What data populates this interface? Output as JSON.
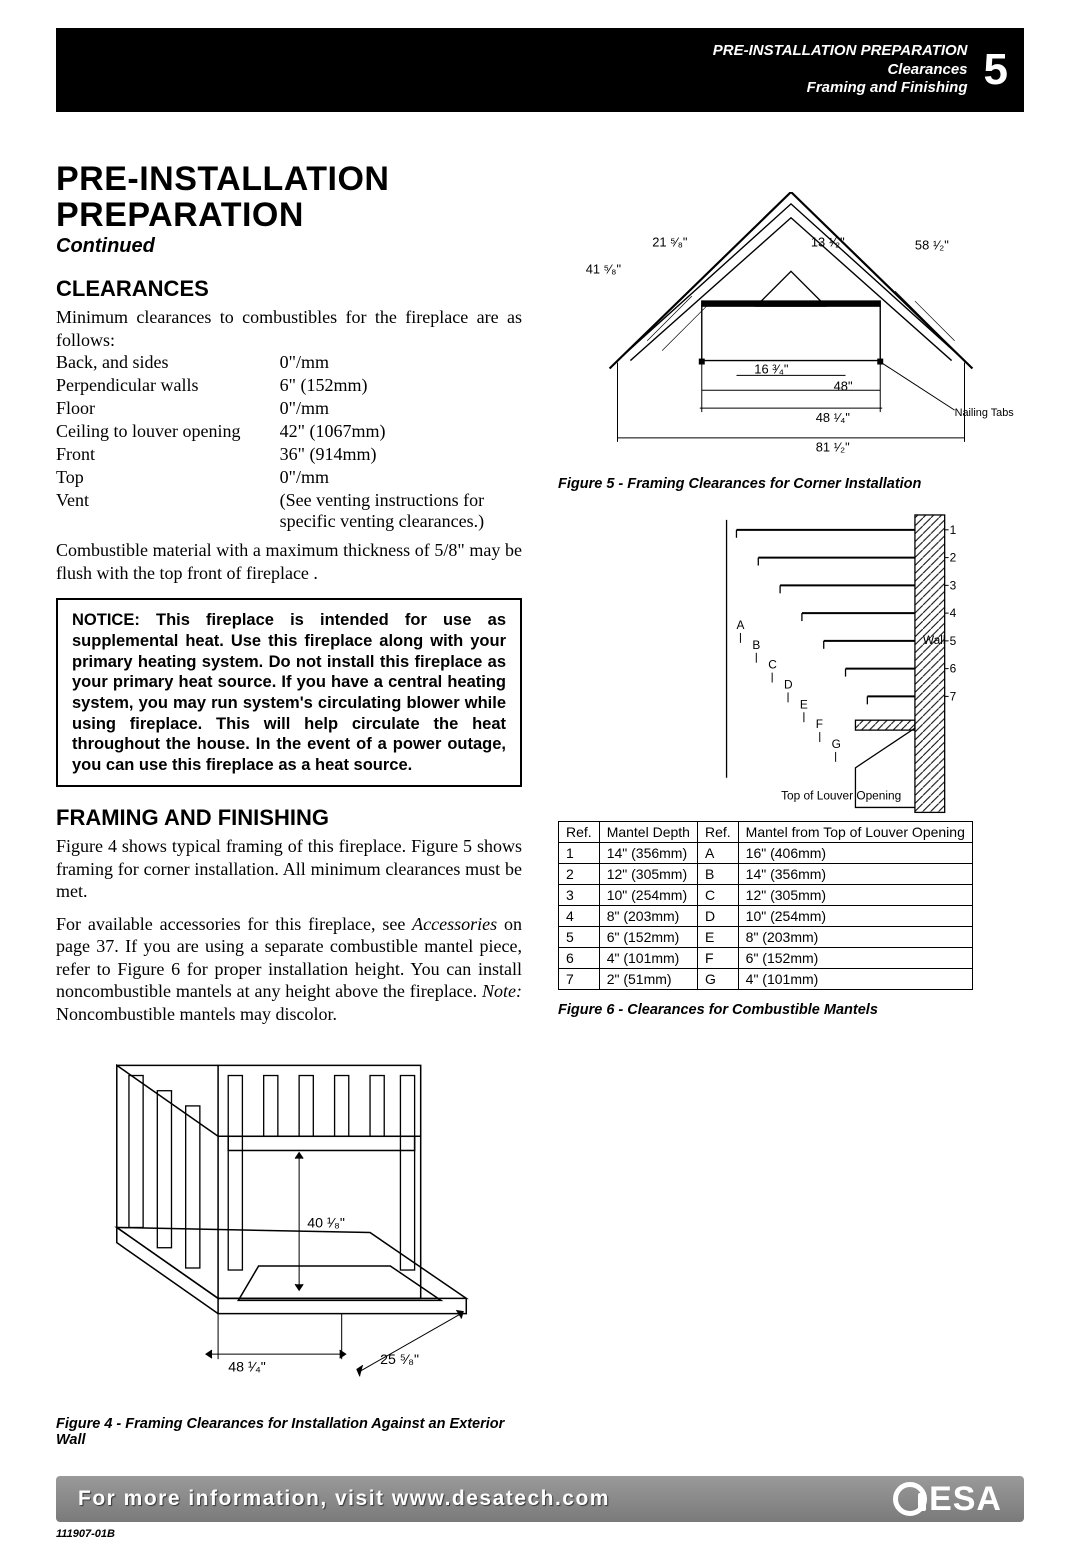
{
  "header": {
    "line1": "PRE-INSTALLATION PREPARATION",
    "line2": "Clearances",
    "line3": "Framing and Finishing",
    "page_num": "5"
  },
  "section_title_1": "PRE-INSTALLATION",
  "section_title_2": "PREPARATION",
  "continued": "Continued",
  "clearances_heading": "CLEARANCES",
  "clearances_intro": "Minimum clearances to combustibles for the fireplace are as follows:",
  "clearances": [
    {
      "label": "Back, and sides",
      "value": "0\"/mm"
    },
    {
      "label": "Perpendicular walls",
      "value": "6\" (152mm)"
    },
    {
      "label": "Floor",
      "value": "0\"/mm"
    },
    {
      "label": "Ceiling to louver opening",
      "value": "42\" (1067mm)"
    },
    {
      "label": "Front",
      "value": "36\" (914mm)"
    },
    {
      "label": "Top",
      "value": "0\"/mm"
    },
    {
      "label": "Vent",
      "value": "(See venting instructions for specific venting clearances.)"
    }
  ],
  "combustible_note": "Combustible material with a maximum thickness of 5/8\" may be flush with the top front of fireplace .",
  "notice": "NOTICE: This fireplace is intended for use as supplemental heat. Use this fireplace along with your primary heating system. Do not install this fireplace as your primary heat source. If you have a central heating system, you may run system's circulating blower while using fireplace. This will help circulate the heat throughout the house. In the event of a power outage, you can use this fireplace as a heat source.",
  "framing_heading": "FRAMING AND FINISHING",
  "framing_p1": "Figure 4 shows typical framing of this fireplace. Figure 5 shows framing for corner installation. All minimum clearances must be met.",
  "framing_p2_a": "For available accessories for this fireplace, see ",
  "framing_p2_em": "Accessories",
  "framing_p2_b": " on page 37. If you are using a separate combustible mantel piece, refer to Figure 6 for proper installation height. You can install noncombustible mantels at any height above the fireplace. ",
  "framing_p2_note": "Note:",
  "framing_p2_c": " Noncombustible mantels may discolor.",
  "fig4": {
    "caption": "Figure 4 - Framing Clearances for Installation Against an Exterior Wall",
    "dim_height": "40 ¹⁄₈\"",
    "dim_width": "48 ¹⁄₄\"",
    "dim_depth": "25 ⁵⁄₈\""
  },
  "fig5": {
    "caption": "Figure 5 - Framing Clearances for Corner Installation",
    "d_21_58": "21 ⁵⁄₈\"",
    "d_41_58": "41 ⁵⁄₈\"",
    "d_13_12": "13 ¹⁄₂\"",
    "d_58_12": "58 ¹⁄₂\"",
    "d_16_34": "16 ³⁄₄\"",
    "d_48": "48\"",
    "d_48_14": "48 ¹⁄₄\"",
    "d_81_12": "81 ¹⁄₂\"",
    "nailing": "Nailing Tabs"
  },
  "fig6": {
    "caption": "Figure 6 - Clearances for Combustible Mantels",
    "wall_label": "Wall",
    "top_label": "Top of Louver Opening",
    "side_letters": [
      "A",
      "B",
      "C",
      "D",
      "E",
      "F",
      "G"
    ],
    "side_nums": [
      "1",
      "2",
      "3",
      "4",
      "5",
      "6",
      "7"
    ],
    "table": {
      "headers": [
        "Ref.",
        "Mantel Depth",
        "Ref.",
        "Mantel from Top of Louver Opening"
      ],
      "rows": [
        [
          "1",
          "14\" (356mm)",
          "A",
          "16\" (406mm)"
        ],
        [
          "2",
          "12\" (305mm)",
          "B",
          "14\" (356mm)"
        ],
        [
          "3",
          "10\" (254mm)",
          "C",
          "12\" (305mm)"
        ],
        [
          "4",
          "8\" (203mm)",
          "D",
          "10\" (254mm)"
        ],
        [
          "5",
          "6\" (152mm)",
          "E",
          "8\" (203mm)"
        ],
        [
          "6",
          "4\" (101mm)",
          "F",
          "6\" (152mm)"
        ],
        [
          "7",
          "2\" (51mm)",
          "G",
          "4\" (101mm)"
        ]
      ]
    }
  },
  "footer_text": "For more information, visit www.desatech.com",
  "logo_text": "ESA",
  "docref": "111907-01B",
  "colors": {
    "black": "#000000",
    "white": "#ffffff",
    "footer_grad_top": "#9a9a9a",
    "footer_grad_bot": "#7a7a7a"
  }
}
